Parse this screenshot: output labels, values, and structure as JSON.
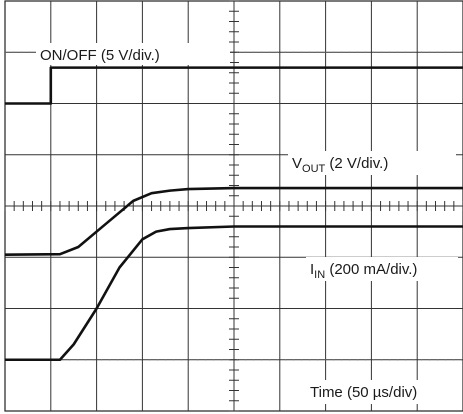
{
  "chart_data": {
    "type": "line",
    "x_divisions": 10,
    "y_divisions": 8,
    "grid": true,
    "annotations": {
      "onoff": "ON/OFF (5 V/div.)",
      "vout_main": "V",
      "vout_sub": "OUT",
      "vout_rest": " (2 V/div.)",
      "iin_main": "I",
      "iin_sub": "IN",
      "iin_rest": " (200 mA/div.)",
      "time": "Time (50 µs/div)"
    },
    "series": [
      {
        "id": "onoff",
        "x": [
          0,
          1.0,
          1.0,
          10
        ],
        "y": [
          6.0,
          6.0,
          6.7,
          6.7
        ]
      },
      {
        "id": "vout",
        "x": [
          0,
          1.2,
          1.6,
          2.2,
          2.8,
          3.2,
          3.6,
          4.0,
          5.0,
          10
        ],
        "y": [
          3.05,
          3.06,
          3.2,
          3.65,
          4.1,
          4.25,
          4.3,
          4.33,
          4.35,
          4.35
        ]
      },
      {
        "id": "iin",
        "x": [
          0,
          1.2,
          1.5,
          2.0,
          2.5,
          3.0,
          3.3,
          3.6,
          4.0,
          5.0,
          10
        ],
        "y": [
          1.0,
          1.0,
          1.3,
          2.0,
          2.8,
          3.35,
          3.5,
          3.55,
          3.57,
          3.6,
          3.6
        ]
      }
    ]
  }
}
